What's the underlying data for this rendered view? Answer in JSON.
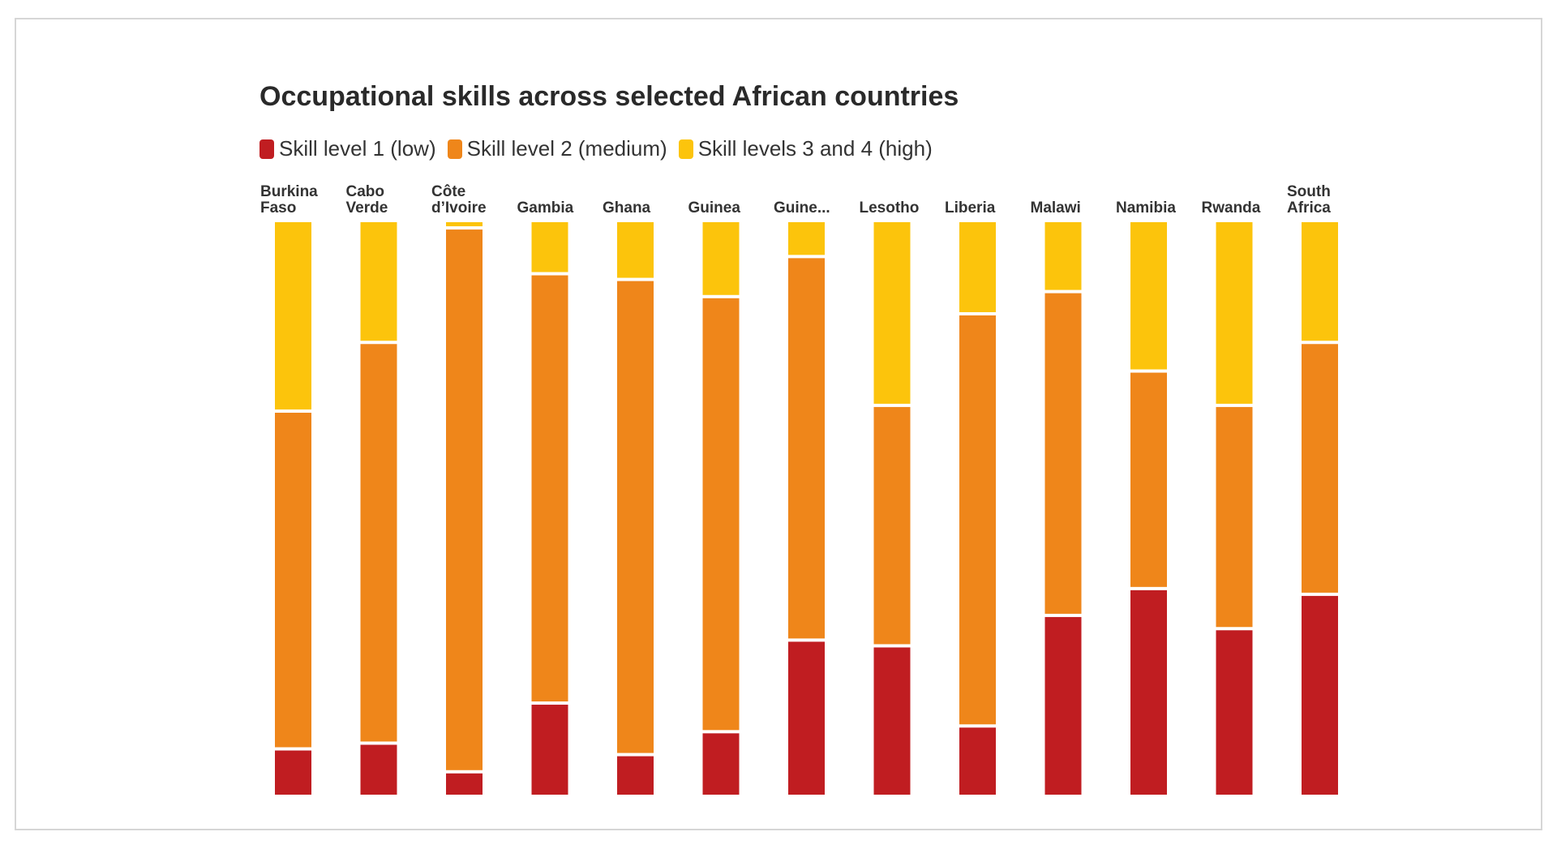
{
  "chart_data": {
    "type": "bar",
    "stacked": true,
    "normalized": true,
    "title": "Occupational skills across selected African countries",
    "legend": "top-left",
    "categories": [
      [
        "Burkina",
        "Faso"
      ],
      [
        "Cabo",
        "Verde"
      ],
      [
        "Côte",
        "d’Ivoire"
      ],
      [
        "Gambia"
      ],
      [
        "Ghana"
      ],
      [
        "Guinea"
      ],
      [
        "Guine..."
      ],
      [
        "Lesotho"
      ],
      [
        "Liberia"
      ],
      [
        "Malawi"
      ],
      [
        "Namibia"
      ],
      [
        "Rwanda"
      ],
      [
        "South",
        "Africa"
      ]
    ],
    "series": [
      {
        "name": "Skill level 1 (low)",
        "color": "#c01d21",
        "values": [
          8,
          9,
          4,
          16,
          7,
          11,
          27,
          26,
          12,
          31,
          36,
          29,
          35
        ]
      },
      {
        "name": "Skill level 2 (medium)",
        "color": "#ef861a",
        "values": [
          59,
          70,
          95,
          75,
          83,
          76,
          67,
          42,
          72,
          56,
          38,
          39,
          44
        ]
      },
      {
        "name": "Skill levels 3 and 4 (high)",
        "color": "#fcc40c",
        "values": [
          33,
          21,
          1,
          9,
          10,
          13,
          6,
          32,
          16,
          12,
          26,
          32,
          21
        ]
      }
    ],
    "ylim": [
      0,
      100
    ]
  }
}
